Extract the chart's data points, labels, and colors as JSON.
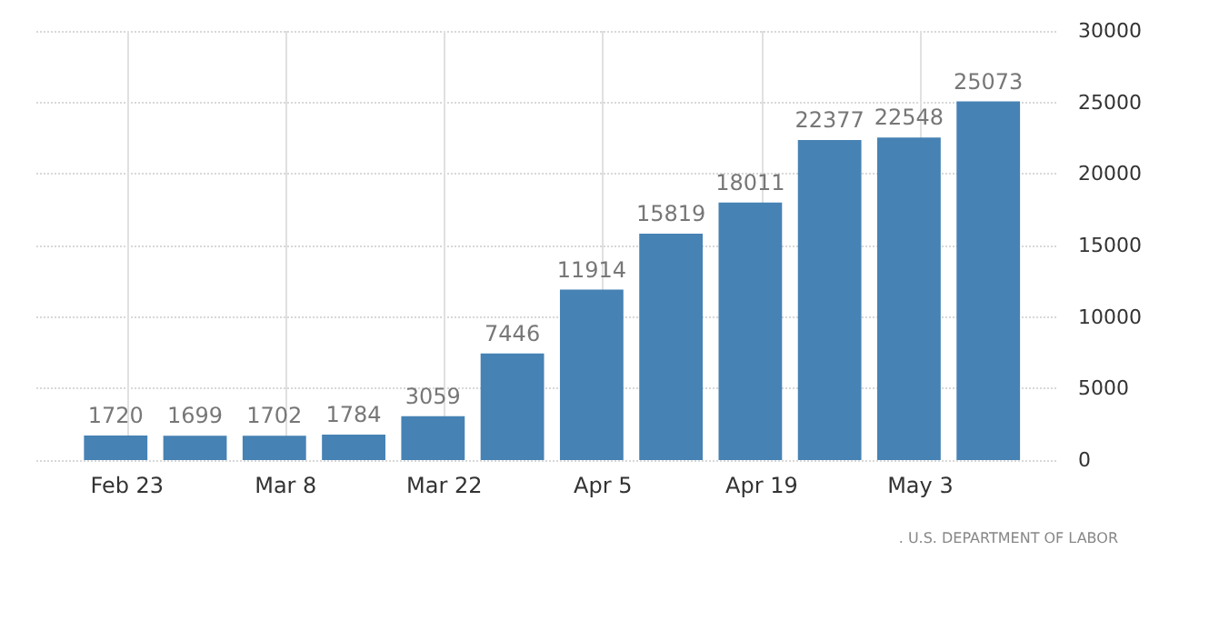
{
  "chart_data": {
    "type": "bar",
    "x": [
      "--02-22",
      "--02-29",
      "--03-07",
      "--03-14",
      "--03-21",
      "--03-28",
      "--04-04",
      "--04-11",
      "--04-18",
      "--04-25",
      "--05-02",
      "--05-09"
    ],
    "values": [
      1720,
      1699,
      1702,
      1784,
      3059,
      7446,
      11914,
      15819,
      18011,
      22377,
      22548,
      25073
    ],
    "color": "#4682b4",
    "data_labels": true,
    "xlim": [
      "--02-15",
      "--05-15"
    ],
    "xticks": [
      {
        "value": "--02-23",
        "label": "Feb 23"
      },
      {
        "value": "--03-08",
        "label": "Mar 8"
      },
      {
        "value": "--03-22",
        "label": "Mar 22"
      },
      {
        "value": "--04-05",
        "label": "Apr 5"
      },
      {
        "value": "--04-19",
        "label": "Apr 19"
      },
      {
        "value": "--05-03",
        "label": "May 3"
      }
    ],
    "ylim": [
      0,
      30000
    ],
    "yticks": [
      0,
      5000,
      10000,
      15000,
      20000,
      25000,
      30000
    ],
    "grid": true,
    "annotations": [
      ". U.S. DEPARTMENT OF LABOR"
    ]
  }
}
